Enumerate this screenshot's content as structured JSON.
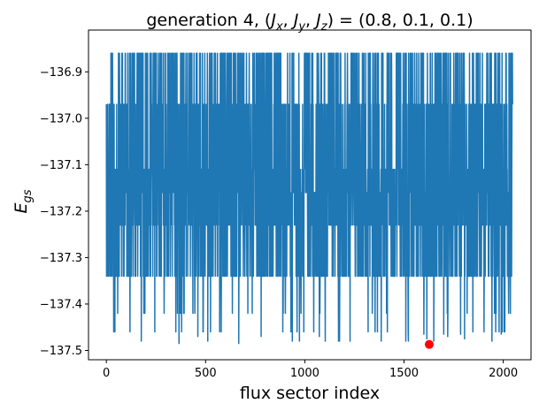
{
  "chart_data": {
    "type": "line",
    "title": "generation 4, (J_x, J_y, J_z) = (0.8, 0.1, 0.1)",
    "title_parts": {
      "prefix": "generation 4, (",
      "jx": "J",
      "jx_sub": "x",
      "jy": "J",
      "jy_sub": "y",
      "jz": "J",
      "jz_sub": "z",
      "middle": ") = (0.8, 0.1, 0.1)"
    },
    "xlabel": "flux sector index",
    "ylabel": "E_gs",
    "ylabel_parts": {
      "main": "E",
      "sub": "gs"
    },
    "xlim": [
      -90,
      2140
    ],
    "ylim": [
      -137.52,
      -136.81
    ],
    "xticks": [
      0,
      500,
      1000,
      1500,
      2000
    ],
    "xtick_labels": [
      "0",
      "500",
      "1000",
      "1500",
      "2000"
    ],
    "yticks": [
      -137.5,
      -137.4,
      -137.3,
      -137.2,
      -137.1,
      -137.0,
      -136.9
    ],
    "ytick_labels": [
      "−137.5",
      "−137.4",
      "−137.3",
      "−137.2",
      "−137.1",
      "−137.0",
      "−136.9"
    ],
    "grid": false,
    "series": [
      {
        "color": "#1f77b4",
        "x_range": [
          0,
          2047
        ],
        "n_points": 2048,
        "levels": [
          -136.86,
          -136.97,
          -137.11,
          -137.16,
          -137.23,
          -137.34
        ],
        "deep_levels": [
          -137.42,
          -137.46,
          -137.48
        ],
        "spikes": [
          {
            "x": 366,
            "y": -137.485
          },
          {
            "x": 461,
            "y": -137.47
          },
          {
            "x": 667,
            "y": -137.485
          },
          {
            "x": 780,
            "y": -137.47
          },
          {
            "x": 1073,
            "y": -137.47
          },
          {
            "x": 1175,
            "y": -137.48
          },
          {
            "x": 1385,
            "y": -137.48
          },
          {
            "x": 1600,
            "y": -137.465
          },
          {
            "x": 1615,
            "y": -137.475
          },
          {
            "x": 1700,
            "y": -137.465
          },
          {
            "x": 1720,
            "y": -137.47
          },
          {
            "x": 1785,
            "y": -137.465
          },
          {
            "x": 1805,
            "y": -137.475
          },
          {
            "x": 1990,
            "y": -137.465
          }
        ]
      }
    ],
    "minimum_marker": {
      "x": 1627,
      "y": -137.487,
      "color": "#ff0000"
    }
  }
}
